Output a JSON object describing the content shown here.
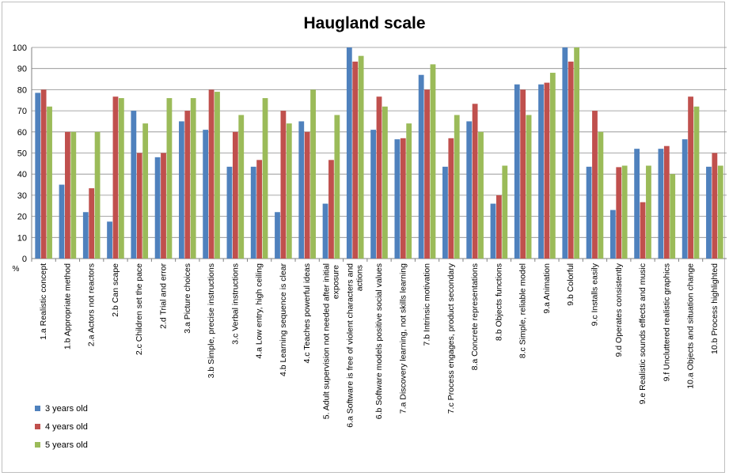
{
  "chart_data": {
    "type": "bar",
    "title": "Haugland scale",
    "ylabel": "%",
    "xlabel": "",
    "ylim": [
      0,
      100
    ],
    "yticks": [
      0,
      10,
      20,
      30,
      40,
      50,
      60,
      70,
      80,
      90,
      100
    ],
    "grid": true,
    "legend_position": "bottom-left",
    "categories": [
      "1.a Realistic concept",
      "1.b Appropriate method",
      "2.a Actors not reactors",
      "2.b Can scape",
      "2.c Children set the pace",
      "2.d Trial and error",
      "3.a Picture choices",
      "3.b Simple, precise instructions",
      "3.c Verbal instructions",
      "4.a Low entry, high ceiling",
      "4.b Learning sequence is clear",
      "4.c Teaches powerful ideas",
      "5. Adult supervision not needed after initial exposure",
      "6.a Software is free of violent characters and actions",
      "6.b Software models positive social values",
      "7.a Discovery learning, not skills learning",
      "7.b Intrinsic motivation",
      "7.c Process engages, product secondary",
      "8.a Concrete representations",
      "8.b Objects functions",
      "8.c Simple, reliable model",
      "9.a Animation",
      "9.b Colorful",
      "9.c Installs easily",
      "9.d Operates consistently",
      "9.e Realistic sounds effects and music",
      "9.f Uncluttered realistic graphics",
      "10.a Objects and situation change",
      "10.b Process highlighted"
    ],
    "series": [
      {
        "name": "3 years old",
        "color": "#4f81bd",
        "values": [
          78.5,
          35,
          22,
          17.5,
          70,
          48,
          65,
          61,
          43.5,
          43.5,
          22,
          65,
          26,
          100,
          61,
          56.5,
          87,
          43.5,
          65,
          26,
          82.5,
          82.5,
          100,
          43.5,
          23,
          52,
          52,
          56.5,
          43.5
        ]
      },
      {
        "name": "4 years old",
        "color": "#c0504d",
        "values": [
          80,
          60,
          33.3,
          76.7,
          50,
          50,
          70,
          80,
          60,
          46.7,
          70,
          60,
          46.7,
          93.3,
          76.7,
          57,
          80,
          57,
          73.3,
          30,
          80,
          83.3,
          93.3,
          70,
          43.3,
          26.7,
          53.3,
          76.7,
          50
        ]
      },
      {
        "name": "5 years old",
        "color": "#9bbb59",
        "values": [
          72,
          60,
          60,
          76,
          64,
          76,
          76,
          79,
          68,
          76,
          64,
          80,
          68,
          96,
          72,
          64,
          92,
          68,
          60,
          44,
          68,
          88,
          100,
          60,
          44,
          44,
          40,
          72,
          44
        ]
      }
    ]
  }
}
